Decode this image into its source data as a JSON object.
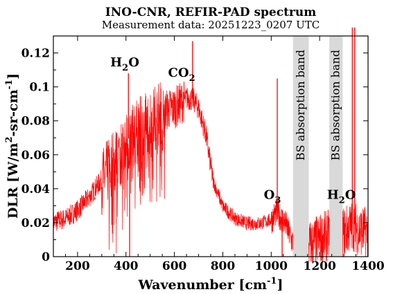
{
  "chart_data": {
    "type": "line",
    "title": "INO-CNR, REFIR-PAD spectrum",
    "subtitle": "Measurement data: 20251223_0207 UTC",
    "xlabel_main": "Wavenumber [cm",
    "xlabel_sup": "-1",
    "xlabel_end": "]",
    "ylabel_main": "DLR [W/m",
    "ylabel_sup1": "2",
    "ylabel_mid": "-sr-cm",
    "ylabel_sup2": "-1",
    "ylabel_end": "]",
    "xlim": [
      100,
      1400
    ],
    "ylim": [
      0,
      0.13
    ],
    "x_ticks": [
      200,
      400,
      600,
      800,
      1000,
      1200,
      1400
    ],
    "y_ticks": [
      0,
      0.02,
      0.04,
      0.06,
      0.08,
      0.1,
      0.12
    ],
    "x_tick_labels": [
      "200",
      "400",
      "600",
      "800",
      "1000",
      "1200",
      "1400"
    ],
    "y_tick_labels": [
      "0",
      "0.02",
      "0.04",
      "0.06",
      "0.08",
      "0.1",
      "0.12"
    ],
    "series_color": "#ff0000",
    "band_color": "#d9d9d9",
    "bands": [
      {
        "x0": 1090,
        "x1": 1155,
        "label": "BS absorption band"
      },
      {
        "x0": 1240,
        "x1": 1295,
        "label": "BS absorption band"
      }
    ],
    "annotations": [
      {
        "main": "H",
        "sub": "2",
        "tail": "O",
        "x": 395,
        "y": 0.112
      },
      {
        "main": "CO",
        "sub": "2",
        "tail": "",
        "x": 630,
        "y": 0.106
      },
      {
        "main": "O",
        "sub": "3",
        "tail": "",
        "x": 1005,
        "y": 0.034
      },
      {
        "main": "H",
        "sub": "2",
        "tail": "O",
        "x": 1290,
        "y": 0.034
      }
    ],
    "envelope": {
      "x": [
        100,
        150,
        200,
        250,
        300,
        350,
        400,
        450,
        500,
        550,
        600,
        650,
        680,
        700,
        730,
        760,
        800,
        850,
        900,
        950,
        1000,
        1020,
        1040,
        1060,
        1085,
        1160,
        1200,
        1235,
        1300,
        1320,
        1340,
        1360,
        1400
      ],
      "y": [
        0.021,
        0.023,
        0.028,
        0.036,
        0.046,
        0.058,
        0.068,
        0.076,
        0.082,
        0.087,
        0.089,
        0.094,
        0.093,
        0.088,
        0.073,
        0.045,
        0.03,
        0.023,
        0.02,
        0.02,
        0.022,
        0.027,
        0.024,
        0.02,
        0.01,
        0.008,
        0.012,
        0.014,
        0.016,
        0.018,
        0.02,
        0.017,
        0.016
      ]
    },
    "spikes": [
      {
        "x": 415,
        "y": 0.0
      },
      {
        "x": 410,
        "y": 0.108
      },
      {
        "x": 675,
        "y": 0.127
      },
      {
        "x": 1025,
        "y": 0.105
      },
      {
        "x": 1045,
        "y": 0.0
      },
      {
        "x": 1335,
        "y": 0.135
      },
      {
        "x": 1345,
        "y": 0.135
      }
    ]
  }
}
